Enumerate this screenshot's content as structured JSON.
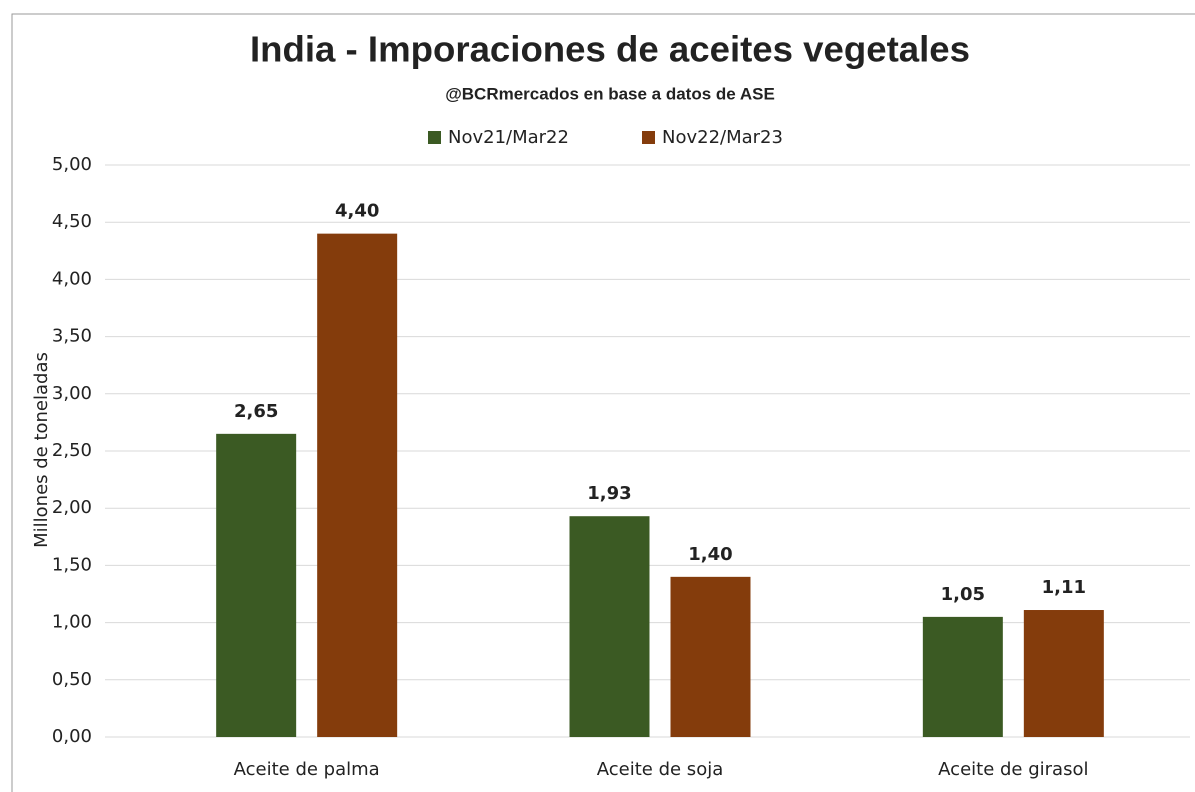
{
  "chart_data": {
    "type": "bar",
    "title": "India - Imporaciones de aceites vegetales",
    "subtitle": "@BCRmercados en base a datos de ASE",
    "y_label": "Millones de toneladas",
    "categories": [
      "Aceite de palma",
      "Aceite de soja",
      "Aceite de girasol"
    ],
    "series": [
      {
        "name": "Nov21/Mar22",
        "color": "#3b5a23",
        "values": [
          2.65,
          1.93,
          1.05
        ],
        "value_labels": [
          "2,65",
          "1,93",
          "1,05"
        ]
      },
      {
        "name": "Nov22/Mar23",
        "color": "#843c0c",
        "values": [
          4.4,
          1.4,
          1.11
        ],
        "value_labels": [
          "4,40",
          "1,40",
          "1,11"
        ]
      }
    ],
    "ylim": [
      0,
      5
    ],
    "yticks": [
      {
        "value": 0,
        "label": "0,00"
      },
      {
        "value": 0.5,
        "label": "0,50"
      },
      {
        "value": 1,
        "label": "1,00"
      },
      {
        "value": 1.5,
        "label": "1,50"
      },
      {
        "value": 2,
        "label": "2,00"
      },
      {
        "value": 2.5,
        "label": "2,50"
      },
      {
        "value": 3,
        "label": "3,00"
      },
      {
        "value": 3.5,
        "label": "3,50"
      },
      {
        "value": 4,
        "label": "4,00"
      },
      {
        "value": 4.5,
        "label": "4,50"
      },
      {
        "value": 5,
        "label": "5,00"
      }
    ],
    "grid": true,
    "legend": "top"
  }
}
